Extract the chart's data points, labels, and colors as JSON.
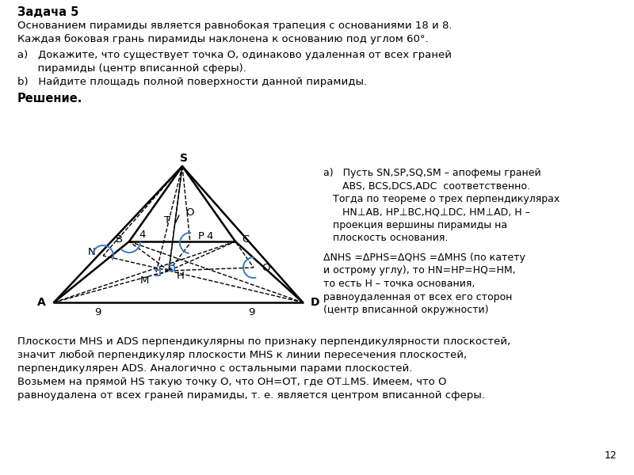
{
  "title_bold": "Задача 5",
  "problem_line1": "Основанием пирамиды является равнобокая трапеция с основаниями 18 и 8.",
  "problem_line2": "Каждая боковая грань пирамиды наклонена к основанию под углом 60°.",
  "sub_a": "a)   Докажите, что существует точка О, одинаково удаленная от всех граней",
  "sub_a2": "      пирамиды (центр вписанной сферы).",
  "sub_b": "b)   Найдите площадь полной поверхности данной пирамиды.",
  "solution_bold": "Решение.",
  "right_a1": "a)   Пусть SN,SP,SQ,SM – апофемы граней",
  "right_a2": "      ABS, BCS,DCS,ADC  соответственно.",
  "right_a3": "   Тогда по теореме о трех перпендикулярах",
  "right_a4": "      HN⊥AB, HP⊥BC,HQ⊥DC, HM⊥AD, H –",
  "right_a5": "   проекция вершины пирамиды на",
  "right_a6": "   плоскость основания.",
  "right_b1": "ΔNHS =ΔPHS=ΔQHS =ΔMHS (по катету",
  "right_b2": "и острому углу), то HN=HP=HQ=HM,",
  "right_b3": "то есть H – точка основания,",
  "right_b4": "равноудаленная от всех его сторон",
  "right_b5": "(центр вписанной окружности)",
  "bottom1": "Плоскости MHS и ADS перпендикулярны по признаку перпендикулярности плоскостей,",
  "bottom2": "значит любой перпендикуляр плоскости MHS к линии пересечения плоскостей,",
  "bottom3": "перпендикулярен ADS. Аналогично с остальными парами плоскостей.",
  "bottom4": "Возьмем на прямой HS такую точку О, что ОН=ОТ, где ОТ⊥MS. Имеем, что О",
  "bottom5": "равноудалена от всех граней пирамиды, т. е. является центром вписанной сферы.",
  "page_num": "12",
  "bg_color": "#ffffff",
  "lc": "#000000",
  "dc": "#000000",
  "bc": "#3a7abf"
}
